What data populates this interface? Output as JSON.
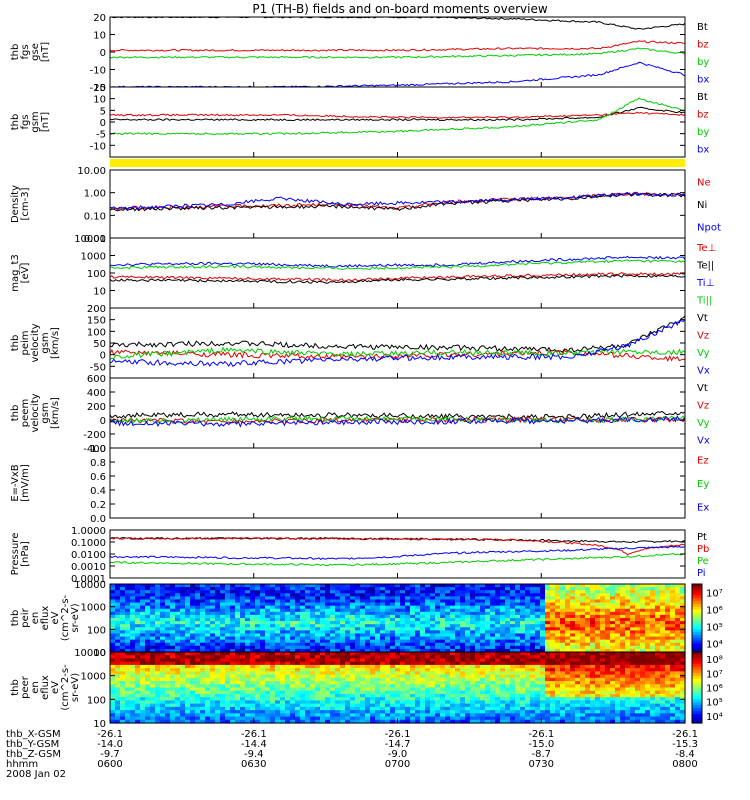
{
  "title": "P1 (TH-B) fields and on-board moments overview",
  "chart_data": [
    {
      "type": "line",
      "id": "fgs-gse",
      "ylabel": [
        "thb",
        "fgs",
        "gse",
        "[nT]"
      ],
      "ylim": [
        -20,
        20
      ],
      "ticks": [
        -20,
        -10,
        0,
        10,
        20
      ],
      "log": false,
      "legend": [
        "Bt",
        "bz",
        "by",
        "bx"
      ],
      "colors": [
        "#000000",
        "#e00000",
        "#00cc00",
        "#0000ff"
      ],
      "series": [
        {
          "name": "Bt",
          "x": [
            0,
            0.3,
            0.5,
            0.7,
            0.85,
            0.92,
            1
          ],
          "y": [
            20,
            20,
            20,
            19,
            17,
            13,
            16
          ]
        },
        {
          "name": "bz",
          "x": [
            0,
            0.3,
            0.5,
            0.7,
            0.85,
            0.92,
            1
          ],
          "y": [
            1,
            1,
            1,
            2,
            2,
            6,
            5
          ]
        },
        {
          "name": "by",
          "x": [
            0,
            0.3,
            0.5,
            0.7,
            0.85,
            0.92,
            1
          ],
          "y": [
            -3,
            -3,
            -3,
            -2,
            -1,
            2,
            -1
          ]
        },
        {
          "name": "bx",
          "x": [
            0,
            0.3,
            0.5,
            0.7,
            0.85,
            0.92,
            1
          ],
          "y": [
            -20,
            -20,
            -19,
            -17,
            -13,
            -6,
            -13
          ]
        }
      ]
    },
    {
      "type": "line",
      "id": "fgs-gsm",
      "ylabel": [
        "thb",
        "fgs",
        "gsm",
        "[nT]"
      ],
      "ylim": [
        -15,
        15
      ],
      "ticks": [
        -10,
        -5,
        0,
        5,
        10,
        15
      ],
      "log": false,
      "legend": [
        "Bt",
        "bz",
        "by",
        "bx"
      ],
      "colors": [
        "#000000",
        "#e00000",
        "#00cc00",
        "#0000ff"
      ],
      "series": [
        {
          "name": "Bz",
          "x": [
            0,
            0.3,
            0.5,
            0.7,
            0.85,
            0.92,
            1
          ],
          "y": [
            1,
            1,
            1,
            1,
            2,
            6,
            4
          ]
        },
        {
          "name": "By",
          "x": [
            0,
            0.3,
            0.5,
            0.7,
            0.85,
            0.92,
            1
          ],
          "y": [
            3,
            3,
            2,
            2,
            3,
            4,
            3
          ]
        },
        {
          "name": "Bx",
          "x": [
            0,
            0.3,
            0.5,
            0.7,
            0.85,
            0.92,
            1
          ],
          "y": [
            -5,
            -5,
            -4,
            -2,
            1,
            10,
            5
          ]
        }
      ]
    },
    {
      "type": "line",
      "id": "density",
      "ylabel": [
        "Density",
        "[cm-3]"
      ],
      "ylim": [
        0.01,
        10
      ],
      "ticks": [
        0.01,
        0.1,
        1,
        10
      ],
      "tick_labels": [
        "0.01",
        "0.10",
        "1.00",
        "10.00"
      ],
      "log": true,
      "legend": [
        "Ne",
        "Ni",
        "Npot"
      ],
      "colors": [
        "#e00000",
        "#000000",
        "#0000ff"
      ],
      "series": [
        {
          "name": "Ne",
          "x": [
            0,
            0.2,
            0.4,
            0.5,
            0.6,
            0.8,
            0.9,
            1
          ],
          "y": [
            0.2,
            0.25,
            0.3,
            0.2,
            0.4,
            0.6,
            0.9,
            0.8
          ]
        },
        {
          "name": "Ni",
          "x": [
            0,
            0.2,
            0.4,
            0.5,
            0.6,
            0.8,
            0.9,
            1
          ],
          "y": [
            0.18,
            0.22,
            0.25,
            0.18,
            0.35,
            0.55,
            0.85,
            0.75
          ]
        },
        {
          "name": "Npot",
          "x": [
            0,
            0.2,
            0.3,
            0.4,
            0.6,
            0.8,
            0.9,
            1
          ],
          "y": [
            0.2,
            0.3,
            0.55,
            0.3,
            0.4,
            0.6,
            0.9,
            0.8
          ]
        }
      ]
    },
    {
      "type": "line",
      "id": "temperature",
      "ylabel": [
        "mag_t3",
        "[eV]"
      ],
      "ylim": [
        1,
        10000
      ],
      "ticks": [
        1,
        10,
        100,
        1000,
        10000
      ],
      "tick_labels": [
        "",
        "10",
        "100",
        "1000",
        "10000"
      ],
      "log": true,
      "legend": [
        "Te⊥",
        "Te||",
        "Ti⊥",
        "Ti||"
      ],
      "colors": [
        "#e00000",
        "#000000",
        "#0000ff",
        "#00cc00"
      ],
      "series": [
        {
          "name": "Ti⊥",
          "x": [
            0,
            0.2,
            0.4,
            0.5,
            0.6,
            0.8,
            0.9,
            1
          ],
          "y": [
            300,
            350,
            250,
            280,
            300,
            600,
            800,
            700
          ]
        },
        {
          "name": "Ti||",
          "x": [
            0,
            0.2,
            0.4,
            0.5,
            0.6,
            0.8,
            0.9,
            1
          ],
          "y": [
            200,
            240,
            180,
            200,
            220,
            400,
            500,
            450
          ]
        },
        {
          "name": "Te⊥",
          "x": [
            0,
            0.2,
            0.4,
            0.5,
            0.6,
            0.8,
            0.9,
            1
          ],
          "y": [
            60,
            50,
            40,
            50,
            60,
            80,
            90,
            85
          ]
        },
        {
          "name": "Te||",
          "x": [
            0,
            0.2,
            0.4,
            0.5,
            0.6,
            0.8,
            0.9,
            1
          ],
          "y": [
            40,
            35,
            30,
            40,
            45,
            60,
            70,
            65
          ]
        }
      ]
    },
    {
      "type": "line",
      "id": "velocity-gsm",
      "ylabel": [
        "thb",
        "peim",
        "velocity",
        "gsm",
        "[km/s]"
      ],
      "ylim": [
        -100,
        200
      ],
      "ticks": [
        -50,
        0,
        50,
        100,
        150,
        200
      ],
      "log": false,
      "legend": [
        "Vt",
        "Vz",
        "Vy",
        "Vx"
      ],
      "colors": [
        "#000000",
        "#e00000",
        "#00cc00",
        "#0000ff"
      ],
      "series": [
        {
          "name": "Vt",
          "x": [
            0,
            0.2,
            0.4,
            0.6,
            0.8,
            0.9,
            1
          ],
          "y": [
            40,
            50,
            35,
            30,
            20,
            40,
            160
          ]
        },
        {
          "name": "Vz",
          "x": [
            0,
            0.2,
            0.4,
            0.6,
            0.8,
            0.9,
            1
          ],
          "y": [
            10,
            0,
            -10,
            0,
            10,
            -5,
            -20
          ]
        },
        {
          "name": "Vy",
          "x": [
            0,
            0.2,
            0.4,
            0.6,
            0.8,
            0.9,
            1
          ],
          "y": [
            -10,
            20,
            0,
            10,
            5,
            15,
            10
          ]
        },
        {
          "name": "Vx",
          "x": [
            0,
            0.2,
            0.4,
            0.6,
            0.8,
            0.9,
            1
          ],
          "y": [
            -30,
            -40,
            -20,
            -10,
            -10,
            40,
            150
          ]
        }
      ]
    },
    {
      "type": "line",
      "id": "velocity-gse",
      "ylabel": [
        "thb",
        "peem",
        "velocity",
        "gsm",
        "[km/s]"
      ],
      "ylim": [
        -400,
        600
      ],
      "ticks": [
        -400,
        -200,
        0,
        200,
        400,
        600
      ],
      "log": false,
      "legend": [
        "Vt",
        "Vz",
        "Vy",
        "Vx"
      ],
      "colors": [
        "#000000",
        "#e00000",
        "#00cc00",
        "#0000ff"
      ],
      "series": [
        {
          "name": "Vt",
          "x": [
            0,
            0.2,
            0.4,
            0.6,
            0.8,
            1
          ],
          "y": [
            60,
            80,
            70,
            50,
            40,
            120
          ]
        },
        {
          "name": "Vz",
          "x": [
            0,
            0.2,
            0.4,
            0.6,
            0.8,
            1
          ],
          "y": [
            0,
            -20,
            -10,
            0,
            10,
            0
          ]
        },
        {
          "name": "Vy",
          "x": [
            0,
            0.2,
            0.4,
            0.6,
            0.8,
            1
          ],
          "y": [
            -20,
            10,
            20,
            10,
            -10,
            20
          ]
        },
        {
          "name": "Vx",
          "x": [
            0,
            0.2,
            0.4,
            0.6,
            0.8,
            1
          ],
          "y": [
            -40,
            -60,
            -30,
            -20,
            -10,
            20
          ]
        }
      ]
    },
    {
      "type": "line",
      "id": "efield",
      "ylabel": [
        "E=-VxB",
        "[mV/m]"
      ],
      "ylim": [
        0,
        1
      ],
      "ticks": [
        0,
        0.2,
        0.4,
        0.6,
        0.8,
        1.0
      ],
      "tick_labels": [
        "0.0",
        "0.2",
        "0.4",
        "0.6",
        "0.8",
        "1.0"
      ],
      "log": false,
      "legend": [
        "Ez",
        "Ey",
        "Ex"
      ],
      "colors": [
        "#e00000",
        "#00cc00",
        "#0000ff"
      ],
      "series": []
    },
    {
      "type": "line",
      "id": "pressure",
      "ylabel": [
        "Pressure",
        "[nPa]"
      ],
      "ylim": [
        0.0001,
        1
      ],
      "ticks": [
        0.0001,
        0.001,
        0.01,
        0.1,
        1
      ],
      "tick_labels": [
        "0.0001",
        "0.0010",
        "0.0100",
        "0.1000",
        "1.0000"
      ],
      "log": true,
      "legend": [
        "Pt",
        "Pb",
        "Pe",
        "Pi"
      ],
      "colors": [
        "#000000",
        "#e00000",
        "#00cc00",
        "#0000ff"
      ],
      "series": [
        {
          "name": "Pt",
          "x": [
            0,
            0.3,
            0.5,
            0.7,
            0.9,
            1
          ],
          "y": [
            0.2,
            0.2,
            0.18,
            0.15,
            0.1,
            0.12
          ]
        },
        {
          "name": "Pb",
          "x": [
            0,
            0.3,
            0.5,
            0.7,
            0.85,
            0.9,
            1
          ],
          "y": [
            0.2,
            0.2,
            0.18,
            0.15,
            0.05,
            0.01,
            0.06
          ]
        },
        {
          "name": "Pi",
          "x": [
            0,
            0.2,
            0.4,
            0.5,
            0.6,
            0.8,
            0.9,
            1
          ],
          "y": [
            0.006,
            0.005,
            0.004,
            0.006,
            0.012,
            0.02,
            0.03,
            0.04
          ]
        },
        {
          "name": "Pe",
          "x": [
            0,
            0.2,
            0.4,
            0.5,
            0.6,
            0.8,
            0.9,
            1
          ],
          "y": [
            0.002,
            0.0015,
            0.0012,
            0.0015,
            0.002,
            0.004,
            0.006,
            0.01
          ]
        }
      ]
    },
    {
      "type": "heatmap",
      "id": "peir-spectrogram",
      "ylabel": [
        "thb",
        "peir",
        "en",
        "eflux",
        "eV",
        "(cm^2-s-",
        "sr-eV)"
      ],
      "ylim": [
        10,
        10000
      ],
      "ticks": [
        10,
        100,
        1000,
        10000
      ],
      "log": true,
      "colorbar_ticks": [
        "10⁴",
        "10⁵",
        "10⁶",
        "10⁷"
      ]
    },
    {
      "type": "heatmap",
      "id": "peer-spectrogram",
      "ylabel": [
        "thb",
        "peer",
        "en",
        "eflux",
        "eV",
        "(cm^2-s-",
        "sr-eV)"
      ],
      "ylim": [
        10,
        10000
      ],
      "ticks": [
        10,
        100,
        1000,
        10000
      ],
      "log": true,
      "colorbar_ticks": [
        "10⁴",
        "10⁵",
        "10⁶",
        "10⁷",
        "10⁸"
      ]
    }
  ],
  "x_axis": {
    "row_labels": [
      "thb_X-GSM",
      "thb_Y-GSM",
      "thb_Z-GSM",
      "hhmm",
      "2008 Jan 02"
    ],
    "columns": [
      {
        "x": "-26.1",
        "y": "-14.0",
        "z": "-9.7",
        "t": "0600"
      },
      {
        "x": "-26.1",
        "y": "-14.4",
        "z": "-9.4",
        "t": "0630"
      },
      {
        "x": "-26.1",
        "y": "-14.7",
        "z": "-9.0",
        "t": "0700"
      },
      {
        "x": "-26.1",
        "y": "-15.0",
        "z": "-8.7",
        "t": "0730"
      },
      {
        "x": "-26.1",
        "y": "-15.3",
        "z": "-8.4",
        "t": "0800"
      }
    ]
  }
}
